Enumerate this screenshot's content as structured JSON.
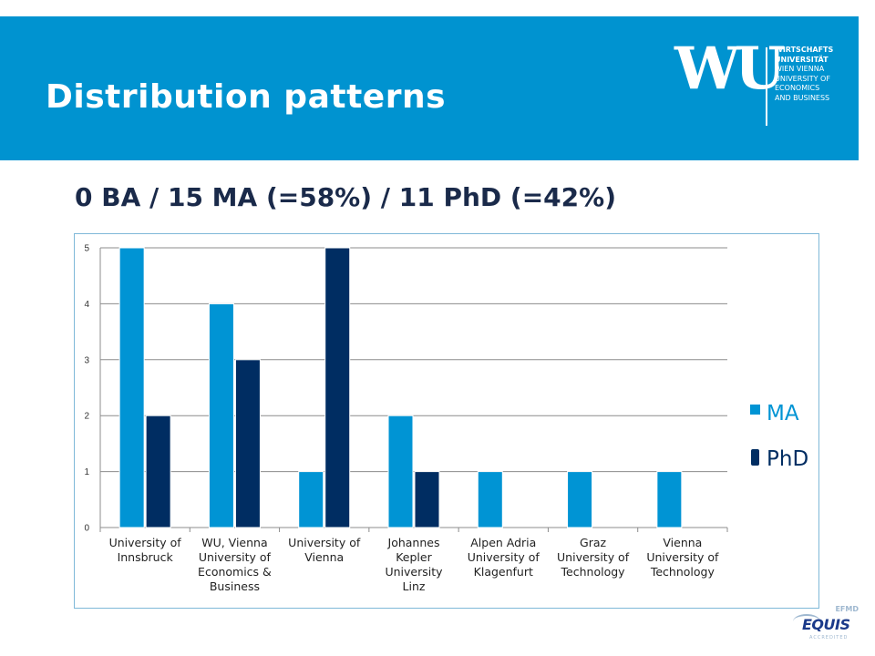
{
  "slide": {
    "title": "Distribution patterns",
    "subtitle": "0 BA / 15 MA (=58%) / 11 PhD (=42%)"
  },
  "logo": {
    "mark": "WU",
    "lines": [
      "WIRTSCHAFTS",
      "UNIVERSITÄT",
      "WIEN VIENNA",
      "UNIVERSITY OF",
      "ECONOMICS",
      "AND BUSINESS"
    ]
  },
  "badge": {
    "top": "EFMD",
    "word": "EQUIS",
    "bottom": "ACCREDITED"
  },
  "colors": {
    "header": "#0093d0",
    "ma": "#0094d4",
    "phd": "#002d62",
    "subtitle": "#1a2a4a"
  },
  "chart_data": {
    "type": "bar",
    "categories": [
      [
        "University of",
        "Innsbruck"
      ],
      [
        "WU, Vienna",
        "University of",
        "Economics &",
        "Business"
      ],
      [
        "University of",
        "Vienna"
      ],
      [
        "Johannes",
        "Kepler",
        "University",
        "Linz"
      ],
      [
        "Alpen Adria",
        "University of",
        "Klagenfurt"
      ],
      [
        "Graz",
        "University of",
        "Technology"
      ],
      [
        "Vienna",
        "University of",
        "Technology"
      ]
    ],
    "series": [
      {
        "name": "MA",
        "values": [
          5,
          4,
          1,
          2,
          1,
          1,
          1
        ],
        "color": "#0094d4"
      },
      {
        "name": "PhD",
        "values": [
          2,
          3,
          5,
          1,
          0,
          0,
          0
        ],
        "color": "#002d62"
      }
    ],
    "yticks": [
      "0",
      "1",
      "2",
      "3",
      "4",
      "5"
    ],
    "ylim": [
      0,
      5
    ],
    "grid": true,
    "legend": "right"
  }
}
